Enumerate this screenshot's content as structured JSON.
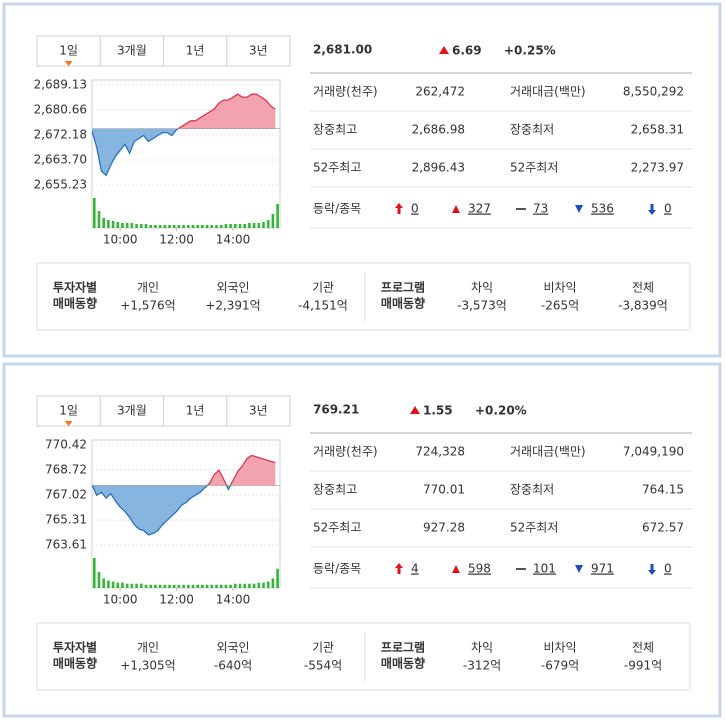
{
  "panels": [
    {
      "tabs": [
        "1일",
        "3개월",
        "1년",
        "3년"
      ],
      "chart": {
        "type": "line",
        "ylim": [
          2652.86,
          2690.83
        ],
        "yticks": [
          {
            "value": 2689.13,
            "label": "2,689.13"
          },
          {
            "value": 2680.66,
            "label": "2,680.66"
          },
          {
            "value": 2672.18,
            "label": "2,672.18"
          },
          {
            "value": 2663.7,
            "label": "2,663.70"
          },
          {
            "value": 2655.23,
            "label": "2,655.23"
          }
        ],
        "xlim": [
          540,
          940
        ],
        "xticks": [
          {
            "value": 600,
            "label": "10:00"
          },
          {
            "value": 720,
            "label": "12:00"
          },
          {
            "value": 840,
            "label": "14:00"
          }
        ],
        "baseline": 2674.31,
        "x": [
          540,
          550,
          560,
          570,
          580,
          590,
          600,
          610,
          620,
          630,
          640,
          650,
          660,
          670,
          680,
          690,
          700,
          710,
          720,
          730,
          740,
          750,
          760,
          770,
          780,
          790,
          800,
          810,
          820,
          830,
          840,
          850,
          860,
          870,
          880,
          890,
          900,
          910,
          920,
          930
        ],
        "values": [
          2673.5,
          2668,
          2660,
          2658.5,
          2662,
          2665,
          2667,
          2669,
          2666,
          2670,
          2671,
          2672,
          2670,
          2671,
          2672,
          2673,
          2673,
          2672,
          2674,
          2675,
          2676,
          2677,
          2677,
          2678,
          2679,
          2680,
          2681,
          2683,
          2684,
          2684,
          2685,
          2686,
          2685,
          2685,
          2686,
          2686,
          2685,
          2684,
          2682,
          2681
        ],
        "volumes": [
          30,
          17,
          10,
          8,
          7,
          6,
          5,
          5,
          5,
          4,
          4,
          4,
          3,
          3,
          3,
          3,
          3,
          3,
          3,
          3,
          3,
          3,
          3,
          3,
          3,
          3,
          3,
          3,
          4,
          4,
          4,
          4,
          4,
          5,
          5,
          5,
          6,
          8,
          14,
          24
        ],
        "up_fill": "#f3a3b0",
        "up_line": "#d23a4e",
        "down_fill": "#86b6df",
        "down_line": "#2a6fb8",
        "volume_color": "#35b535"
      },
      "price": "2,681.00",
      "change": "6.69",
      "change_pct": "+0.25%",
      "stats": [
        [
          "거래량(천주)",
          "262,472",
          "거래대금(백만)",
          "8,550,292"
        ],
        [
          "장중최고",
          "2,686.98",
          "장중최저",
          "2,658.31"
        ],
        [
          "52주최고",
          "2,896.43",
          "52주최저",
          "2,273.97"
        ]
      ],
      "breadth": {
        "label": "등락/종목",
        "values": [
          "0",
          "327",
          "73",
          "536",
          "0"
        ]
      },
      "investors": {
        "label": [
          "투자자별",
          "매매동향"
        ],
        "items": [
          {
            "name": "개인",
            "value": "+1,576억"
          },
          {
            "name": "외국인",
            "value": "+2,391억"
          },
          {
            "name": "기관",
            "value": "-4,151억"
          }
        ]
      },
      "program": {
        "label": [
          "프로그램",
          "매매동향"
        ],
        "items": [
          {
            "name": "차익",
            "value": "-3,573억"
          },
          {
            "name": "비차익",
            "value": "-265억"
          },
          {
            "name": "전체",
            "value": "-3,839억"
          }
        ]
      }
    },
    {
      "tabs": [
        "1일",
        "3개월",
        "1년",
        "3년"
      ],
      "chart": {
        "type": "line",
        "ylim": [
          763.14,
          770.75
        ],
        "yticks": [
          {
            "value": 770.42,
            "label": "770.42"
          },
          {
            "value": 768.72,
            "label": "768.72"
          },
          {
            "value": 767.02,
            "label": "767.02"
          },
          {
            "value": 765.31,
            "label": "765.31"
          },
          {
            "value": 763.61,
            "label": "763.61"
          }
        ],
        "xlim": [
          540,
          940
        ],
        "xticks": [
          {
            "value": 600,
            "label": "10:00"
          },
          {
            "value": 720,
            "label": "12:00"
          },
          {
            "value": 840,
            "label": "14:00"
          }
        ],
        "baseline": 767.66,
        "x": [
          540,
          550,
          560,
          570,
          580,
          590,
          600,
          610,
          620,
          630,
          640,
          650,
          660,
          670,
          680,
          690,
          700,
          710,
          720,
          730,
          740,
          750,
          760,
          770,
          780,
          790,
          800,
          810,
          820,
          830,
          840,
          850,
          860,
          870,
          880,
          890,
          900,
          910,
          920,
          930
        ],
        "values": [
          767.7,
          767.0,
          767.2,
          766.8,
          767.1,
          766.6,
          766.2,
          765.9,
          765.5,
          765.0,
          764.7,
          764.6,
          764.3,
          764.4,
          764.6,
          765.0,
          765.3,
          765.6,
          765.9,
          766.3,
          766.5,
          766.8,
          767.0,
          767.2,
          767.5,
          767.8,
          768.4,
          768.7,
          768.1,
          767.4,
          768.0,
          768.6,
          769.0,
          769.5,
          769.7,
          769.6,
          769.5,
          769.4,
          769.3,
          769.2
        ],
        "volumes": [
          28,
          15,
          9,
          7,
          6,
          5,
          5,
          4,
          4,
          4,
          4,
          3,
          3,
          3,
          3,
          3,
          3,
          3,
          3,
          3,
          3,
          3,
          3,
          3,
          3,
          3,
          3,
          3,
          3,
          3,
          4,
          4,
          4,
          4,
          4,
          5,
          5,
          6,
          9,
          18
        ],
        "up_fill": "#f3a3b0",
        "up_line": "#d23a4e",
        "down_fill": "#86b6df",
        "down_line": "#2a6fb8",
        "volume_color": "#35b535"
      },
      "price": "769.21",
      "change": "1.55",
      "change_pct": "+0.20%",
      "stats": [
        [
          "거래량(천주)",
          "724,328",
          "거래대금(백만)",
          "7,049,190"
        ],
        [
          "장중최고",
          "770.01",
          "장중최저",
          "764.15"
        ],
        [
          "52주최고",
          "927.28",
          "52주최저",
          "672.57"
        ]
      ],
      "breadth": {
        "label": "등락/종목",
        "values": [
          "4",
          "598",
          "101",
          "971",
          "0"
        ]
      },
      "investors": {
        "label": [
          "투자자별",
          "매매동향"
        ],
        "items": [
          {
            "name": "개인",
            "value": "+1,305억"
          },
          {
            "name": "외국인",
            "value": "-640억"
          },
          {
            "name": "기관",
            "value": "-554억"
          }
        ]
      },
      "program": {
        "label": [
          "프로그램",
          "매매동향"
        ],
        "items": [
          {
            "name": "차익",
            "value": "-312억"
          },
          {
            "name": "비차익",
            "value": "-679억"
          },
          {
            "name": "전체",
            "value": "-991억"
          }
        ]
      }
    }
  ]
}
